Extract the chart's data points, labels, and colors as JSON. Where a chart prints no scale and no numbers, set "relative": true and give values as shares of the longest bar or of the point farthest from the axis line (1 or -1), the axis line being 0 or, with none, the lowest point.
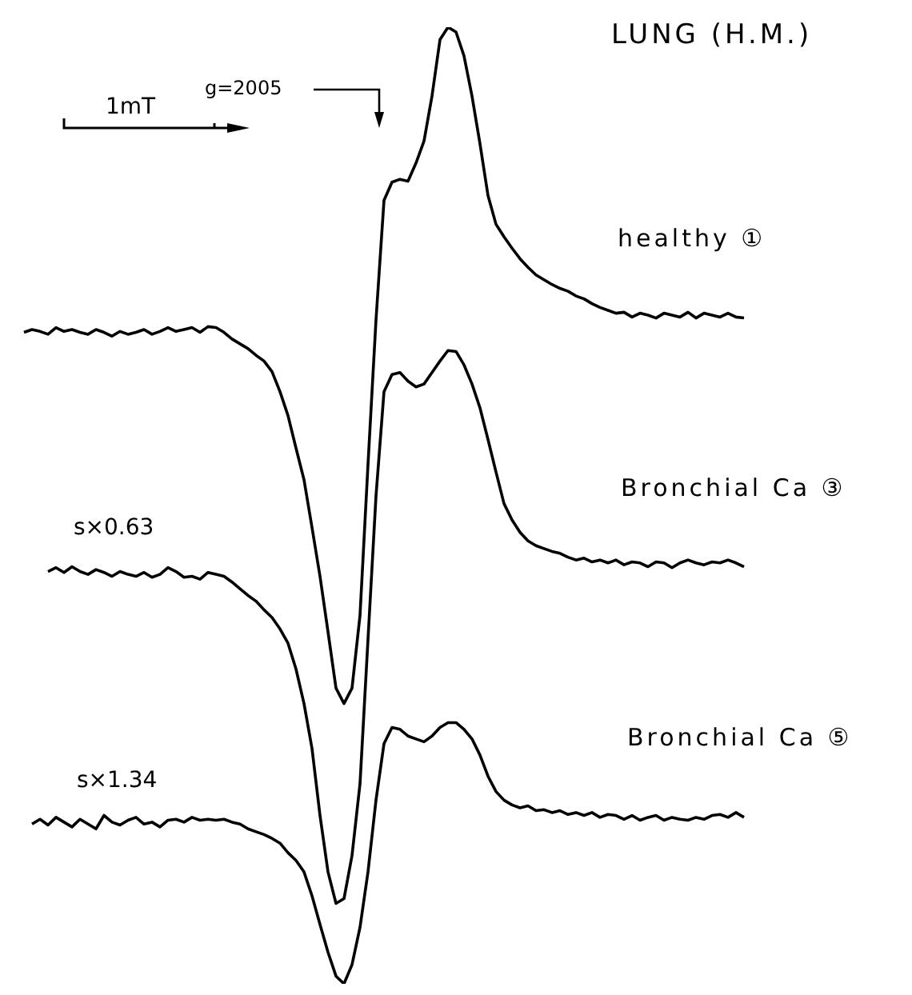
{
  "chart_data": {
    "type": "line",
    "relative": true,
    "title": "LUNG (H.M.)",
    "annotations": [
      "1mT",
      "g=2005",
      "s×0.63",
      "s×1.34"
    ],
    "categories": [
      null,
      null,
      null,
      null,
      null,
      null,
      null,
      null,
      null,
      null,
      null,
      null,
      null,
      null,
      null,
      null,
      null,
      null,
      null,
      null,
      null,
      null,
      null,
      null,
      null,
      null,
      null,
      null,
      null,
      null,
      null,
      null,
      null,
      null,
      null,
      null,
      null,
      null,
      null,
      null,
      null,
      null,
      null,
      null,
      null,
      null,
      null,
      null,
      null,
      null,
      null,
      null,
      null,
      null,
      null,
      null,
      null,
      null,
      null,
      null,
      null,
      null,
      null,
      null,
      null,
      null,
      null,
      null,
      null,
      null,
      null,
      null,
      null,
      null,
      null,
      null,
      null,
      null,
      null,
      null,
      null,
      null,
      null,
      null,
      null,
      null,
      null,
      null,
      null,
      null,
      null,
      null,
      null
    ],
    "series": [
      {
        "name": "healthy ①",
        "color": "#000000",
        "values": [
          null,
          0.681,
          0.684,
          0.682,
          0.679,
          0.686,
          0.682,
          0.684,
          0.681,
          0.679,
          0.684,
          0.681,
          0.677,
          0.682,
          0.679,
          0.681,
          0.684,
          0.679,
          0.682,
          0.686,
          0.682,
          0.684,
          0.686,
          0.681,
          0.687,
          0.686,
          0.681,
          0.674,
          0.669,
          0.664,
          0.657,
          0.651,
          0.64,
          0.619,
          0.594,
          0.56,
          0.527,
          0.477,
          0.426,
          0.368,
          0.309,
          0.293,
          0.309,
          0.385,
          0.543,
          0.694,
          0.819,
          0.838,
          0.841,
          0.839,
          0.858,
          0.881,
          0.928,
          0.987,
          1,
          0.995,
          0.97,
          0.928,
          0.878,
          0.824,
          0.794,
          0.781,
          0.769,
          0.758,
          0.749,
          0.741,
          0.736,
          0.731,
          0.727,
          0.724,
          0.719,
          0.716,
          0.711,
          0.707,
          0.704,
          0.701,
          0.702,
          0.697,
          0.701,
          0.699,
          0.696,
          0.701,
          0.699,
          0.697,
          0.702,
          0.696,
          0.701,
          0.699,
          0.697,
          0.701,
          0.697,
          0.696,
          null
        ]
      },
      {
        "name": "Bronchial Ca ③",
        "color": "#000000",
        "values": [
          null,
          null,
          null,
          null,
          0.431,
          0.435,
          0.43,
          0.436,
          0.431,
          0.428,
          0.433,
          0.43,
          0.426,
          0.431,
          0.428,
          0.426,
          0.43,
          0.425,
          0.428,
          0.435,
          0.431,
          0.425,
          0.426,
          0.423,
          0.43,
          0.428,
          0.426,
          0.42,
          0.413,
          0.406,
          0.4,
          0.391,
          0.383,
          0.371,
          0.356,
          0.329,
          0.293,
          0.246,
          0.176,
          0.117,
          0.084,
          0.089,
          0.134,
          0.209,
          0.36,
          0.51,
          0.619,
          0.637,
          0.639,
          0.63,
          0.624,
          0.627,
          0.639,
          0.651,
          0.662,
          0.661,
          0.647,
          0.627,
          0.602,
          0.569,
          0.535,
          0.502,
          0.485,
          0.472,
          0.463,
          0.458,
          0.455,
          0.452,
          0.45,
          0.446,
          0.443,
          0.445,
          0.441,
          0.443,
          0.44,
          0.443,
          0.438,
          0.441,
          0.44,
          0.436,
          0.441,
          0.44,
          0.435,
          0.44,
          0.443,
          0.44,
          0.438,
          0.441,
          0.44,
          0.443,
          0.44,
          0.436,
          null
        ]
      },
      {
        "name": "Bronchial Ca ⑤",
        "color": "#000000",
        "values": [
          null,
          null,
          0.167,
          0.172,
          0.166,
          0.174,
          0.169,
          0.164,
          0.172,
          0.167,
          0.162,
          0.176,
          0.169,
          0.166,
          0.171,
          0.174,
          0.167,
          0.169,
          0.164,
          0.171,
          0.172,
          0.169,
          0.174,
          0.171,
          0.172,
          0.171,
          0.172,
          0.169,
          0.167,
          0.162,
          0.159,
          0.156,
          0.152,
          0.147,
          0.137,
          0.129,
          0.117,
          0.092,
          0.062,
          0.033,
          0.008,
          0,
          0.02,
          0.059,
          0.117,
          0.192,
          0.251,
          0.268,
          0.266,
          0.259,
          0.256,
          0.253,
          0.259,
          0.268,
          0.273,
          0.273,
          0.266,
          0.256,
          0.239,
          0.217,
          0.201,
          0.192,
          0.187,
          0.184,
          0.186,
          0.181,
          0.182,
          0.179,
          0.181,
          0.177,
          0.179,
          0.176,
          0.179,
          0.174,
          0.177,
          0.176,
          0.172,
          0.176,
          0.171,
          0.174,
          0.176,
          0.171,
          0.174,
          0.172,
          0.171,
          0.174,
          0.172,
          0.176,
          0.177,
          0.174,
          0.179,
          0.174,
          null
        ]
      }
    ]
  }
}
